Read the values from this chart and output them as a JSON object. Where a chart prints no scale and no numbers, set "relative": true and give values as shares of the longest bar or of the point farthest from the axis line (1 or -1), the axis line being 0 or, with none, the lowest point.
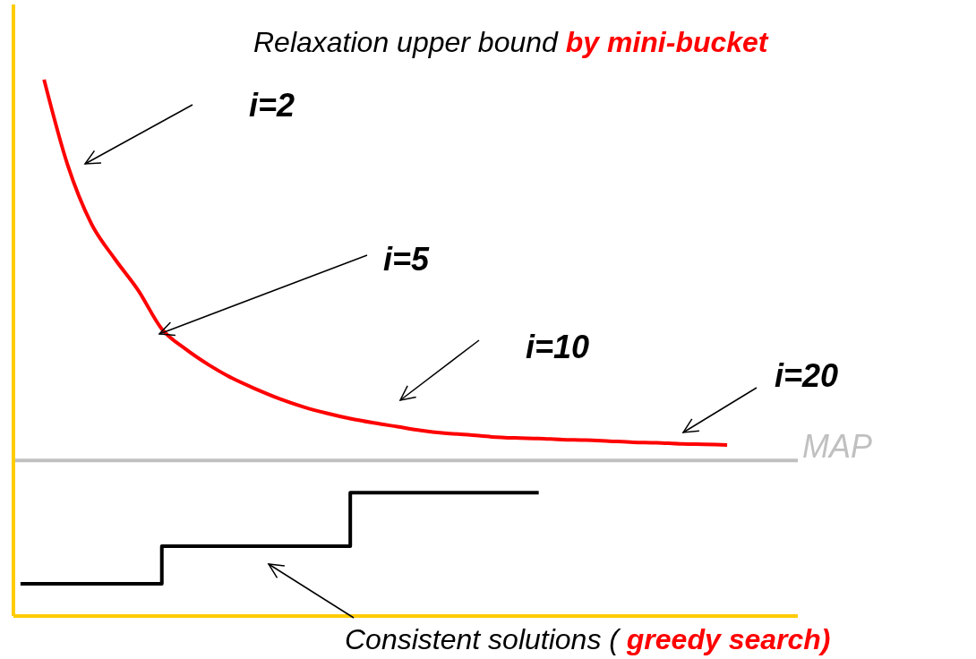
{
  "chart_data": {
    "type": "line",
    "relative": true,
    "title": "Relaxation upper bound by mini-bucket",
    "xlabel": "Consistent solutions ( greedy search)",
    "categories": [
      null,
      null,
      null,
      null,
      null,
      null,
      null,
      null,
      null,
      null,
      null,
      null,
      null,
      null,
      null,
      null,
      null,
      null,
      null,
      null,
      null,
      null,
      null,
      null,
      null,
      null,
      null,
      null,
      null,
      null,
      null
    ],
    "series": [
      {
        "color": "#ff0000",
        "values": [
          null,
          1.0,
          0.841,
          0.732,
          0.666,
          0.607,
          0.535,
          0.498,
          0.468,
          0.443,
          0.423,
          0.405,
          0.39,
          0.378,
          0.368,
          0.36,
          0.353,
          0.346,
          0.341,
          0.338,
          0.334,
          0.332,
          0.331,
          0.329,
          0.328,
          0.326,
          0.324,
          0.323,
          0.321,
          0.32,
          0.319
        ]
      },
      {
        "type": "step",
        "color": "#000000",
        "values": [
          0.06,
          0.06,
          0.06,
          0.06,
          0.06,
          0.06,
          0.13,
          0.13,
          0.13,
          0.13,
          0.13,
          0.13,
          0.13,
          0.13,
          0.23,
          0.23,
          0.23,
          0.23,
          0.23,
          0.23,
          0.23,
          0.23,
          0.23,
          null,
          null,
          null,
          null,
          null,
          null,
          null,
          null
        ]
      }
    ],
    "ref_lines": [
      {
        "axis": "y",
        "value": 0.29,
        "label": "MAP",
        "color": "#c0c0c0"
      }
    ],
    "annotations": [
      "i=2",
      "i=5",
      "i=10",
      "i=20"
    ],
    "legend": false,
    "grid": false,
    "marker": "none",
    "line_style": "solid"
  }
}
